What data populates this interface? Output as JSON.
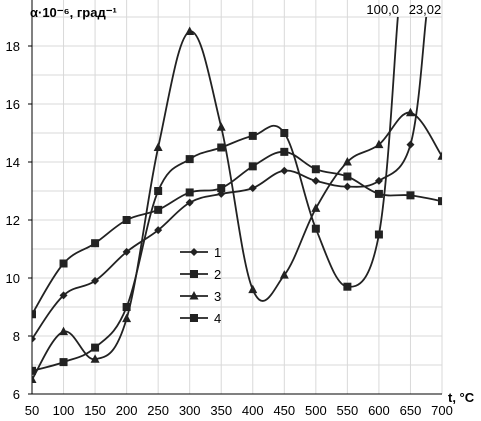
{
  "chart_data": {
    "type": "line",
    "title": "",
    "ylabel": "α·10⁻⁶, град⁻¹",
    "xlabel": "t, °C",
    "x": [
      50,
      100,
      150,
      200,
      250,
      300,
      350,
      400,
      450,
      500,
      550,
      600,
      650,
      700
    ],
    "xlim": [
      50,
      700
    ],
    "ylim": [
      6,
      19
    ],
    "yticks": [
      6,
      8,
      10,
      12,
      14,
      16,
      18
    ],
    "grid": true,
    "legend": "left-center",
    "series": [
      {
        "name": "1",
        "marker": "diamond",
        "points": [
          [
            50,
            7.9
          ],
          [
            100,
            9.4
          ],
          [
            150,
            9.9
          ],
          [
            200,
            10.9
          ],
          [
            250,
            11.65
          ],
          [
            300,
            12.6
          ],
          [
            350,
            12.9
          ],
          [
            400,
            13.1
          ],
          [
            450,
            13.7
          ],
          [
            500,
            13.35
          ],
          [
            550,
            13.15
          ],
          [
            600,
            13.35
          ],
          [
            650,
            14.6
          ],
          [
            675,
            19.0
          ]
        ]
      },
      {
        "name": "2",
        "marker": "square",
        "points": [
          [
            50,
            8.75
          ],
          [
            100,
            10.5
          ],
          [
            150,
            11.2
          ],
          [
            200,
            12.0
          ],
          [
            250,
            12.35
          ],
          [
            300,
            12.95
          ],
          [
            350,
            13.1
          ],
          [
            400,
            13.85
          ],
          [
            450,
            14.35
          ],
          [
            500,
            13.75
          ],
          [
            550,
            13.5
          ],
          [
            600,
            12.9
          ],
          [
            650,
            12.85
          ],
          [
            700,
            12.65
          ]
        ]
      },
      {
        "name": "3",
        "marker": "triangle",
        "points": [
          [
            50,
            6.5
          ],
          [
            100,
            8.15
          ],
          [
            150,
            7.2
          ],
          [
            200,
            8.6
          ],
          [
            250,
            14.5
          ],
          [
            300,
            18.5
          ],
          [
            350,
            15.2
          ],
          [
            400,
            9.6
          ],
          [
            450,
            10.1
          ],
          [
            500,
            12.4
          ],
          [
            550,
            14.0
          ],
          [
            600,
            14.6
          ],
          [
            650,
            15.7
          ],
          [
            700,
            14.2
          ]
        ]
      },
      {
        "name": "4",
        "marker": "square",
        "points": [
          [
            50,
            6.8
          ],
          [
            100,
            7.1
          ],
          [
            150,
            7.6
          ],
          [
            200,
            9.0
          ],
          [
            250,
            13.0
          ],
          [
            300,
            14.1
          ],
          [
            350,
            14.5
          ],
          [
            400,
            14.9
          ],
          [
            450,
            15.0
          ],
          [
            500,
            11.7
          ],
          [
            550,
            9.7
          ],
          [
            600,
            11.5
          ],
          [
            630,
            19.0
          ]
        ]
      }
    ],
    "annotations": [
      {
        "text": "100,0",
        "x": 606
      },
      {
        "text": "23,02",
        "x": 673
      }
    ]
  }
}
